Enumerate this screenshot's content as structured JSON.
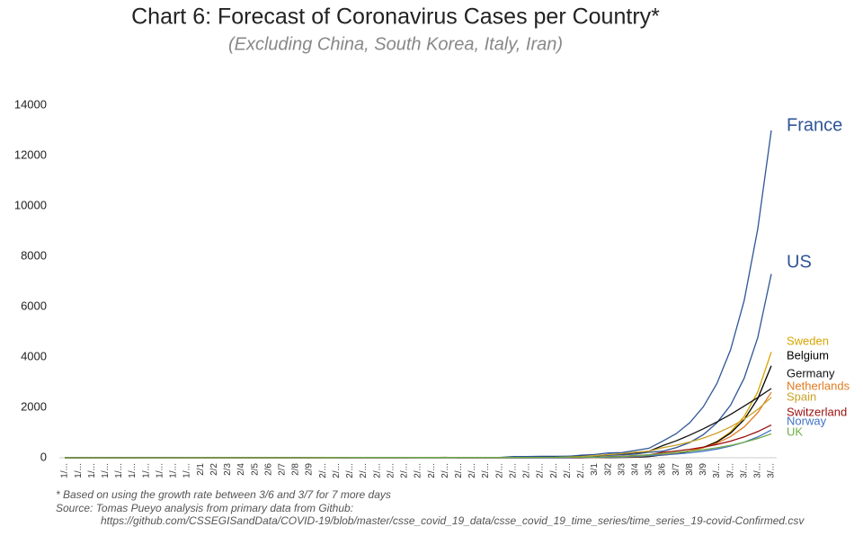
{
  "chart_data": {
    "type": "line",
    "title": "Chart 6: Forecast of Coronavirus Cases per Country*",
    "subtitle": "(Excluding China, South Korea, Italy, Iran)",
    "notes": [
      "* Based on using the growth rate between 3/6 and 3/7 for 7 more days",
      "Source: Tomas Pueyo analysis from primary data from Github:",
      "https://github.com/CSSEGISandData/COVID-19/blob/master/csse_covid_19_data/csse_covid_19_time_series/time_series_19-covid-Confirmed.csv"
    ],
    "categories": [
      "1/...",
      "1/...",
      "1/...",
      "1/...",
      "1/...",
      "1/...",
      "1/...",
      "1/...",
      "1/...",
      "1/...",
      "2/1",
      "2/2",
      "2/3",
      "2/4",
      "2/5",
      "2/6",
      "2/7",
      "2/8",
      "2/9",
      "2/...",
      "2/...",
      "2/...",
      "2/...",
      "2/...",
      "2/...",
      "2/...",
      "2/...",
      "2/...",
      "2/...",
      "2/...",
      "2/...",
      "2/...",
      "2/...",
      "2/...",
      "2/...",
      "2/...",
      "2/...",
      "2/...",
      "2/...",
      "3/1",
      "3/2",
      "3/3",
      "3/4",
      "3/5",
      "3/6",
      "3/7",
      "3/8",
      "3/9",
      "3/...",
      "3/...",
      "3/...",
      "3/...",
      "3/..."
    ],
    "ylim": [
      0,
      14000
    ],
    "yticks": [
      0,
      2000,
      4000,
      6000,
      8000,
      10000,
      12000,
      14000
    ],
    "grid": false,
    "series": [
      {
        "name": "France",
        "color": "#2f5597",
        "values": [
          0,
          0,
          2,
          3,
          3,
          3,
          4,
          5,
          5,
          5,
          6,
          6,
          6,
          6,
          6,
          6,
          6,
          11,
          11,
          11,
          11,
          11,
          11,
          11,
          12,
          12,
          12,
          12,
          12,
          12,
          12,
          12,
          12,
          12,
          14,
          18,
          38,
          57,
          100,
          130,
          191,
          204,
          288,
          380,
          656,
          957,
          1392,
          2026,
          2948,
          4289,
          6241,
          9080,
          13000
        ]
      },
      {
        "name": "US",
        "color": "#2f5597",
        "values": [
          1,
          1,
          2,
          2,
          5,
          5,
          5,
          5,
          5,
          6,
          8,
          8,
          11,
          11,
          11,
          11,
          11,
          11,
          11,
          11,
          12,
          13,
          13,
          13,
          13,
          13,
          13,
          13,
          13,
          13,
          15,
          15,
          15,
          51,
          51,
          57,
          58,
          60,
          68,
          74,
          98,
          118,
          149,
          217,
          262,
          402,
          607,
          917,
          1385,
          2091,
          3158,
          4768,
          7300
        ]
      },
      {
        "name": "Sweden",
        "color": "#d9a400",
        "values": [
          0,
          0,
          0,
          0,
          0,
          0,
          0,
          0,
          0,
          0,
          1,
          1,
          1,
          1,
          1,
          1,
          1,
          1,
          1,
          1,
          1,
          1,
          1,
          1,
          1,
          1,
          1,
          1,
          1,
          1,
          1,
          1,
          1,
          1,
          1,
          2,
          7,
          7,
          12,
          14,
          15,
          21,
          35,
          94,
          101,
          161,
          256,
          408,
          648,
          1031,
          1640,
          2608,
          4200
        ]
      },
      {
        "name": "Belgium",
        "color": "#000000",
        "values": [
          0,
          0,
          0,
          0,
          0,
          0,
          0,
          0,
          0,
          0,
          0,
          0,
          0,
          1,
          1,
          1,
          1,
          1,
          1,
          1,
          1,
          1,
          1,
          1,
          1,
          1,
          1,
          1,
          1,
          1,
          1,
          1,
          1,
          1,
          1,
          1,
          1,
          1,
          1,
          2,
          8,
          13,
          23,
          50,
          109,
          169,
          262,
          406,
          630,
          977,
          1514,
          2348,
          3650
        ]
      },
      {
        "name": "Germany",
        "color": "#111111",
        "values": [
          0,
          0,
          0,
          0,
          0,
          0,
          4,
          4,
          4,
          5,
          8,
          10,
          12,
          12,
          12,
          12,
          13,
          13,
          14,
          14,
          16,
          16,
          16,
          16,
          16,
          16,
          16,
          16,
          16,
          16,
          16,
          16,
          16,
          16,
          16,
          18,
          21,
          26,
          57,
          57,
          129,
          157,
          196,
          262,
          482,
          670,
          900,
          1150,
          1420,
          1720,
          2050,
          2390,
          2750
        ]
      },
      {
        "name": "Netherlands",
        "color": "#e07b20",
        "values": [
          0,
          0,
          0,
          0,
          0,
          0,
          0,
          0,
          0,
          0,
          0,
          0,
          0,
          0,
          0,
          0,
          0,
          0,
          0,
          0,
          0,
          0,
          0,
          0,
          0,
          0,
          0,
          0,
          0,
          0,
          0,
          0,
          0,
          0,
          0,
          0,
          1,
          1,
          6,
          10,
          18,
          24,
          38,
          82,
          128,
          188,
          274,
          398,
          579,
          843,
          1226,
          1784,
          2600
        ]
      },
      {
        "name": "Spain",
        "color": "#c9a227",
        "values": [
          0,
          0,
          0,
          0,
          0,
          0,
          0,
          0,
          0,
          0,
          1,
          1,
          1,
          1,
          1,
          1,
          1,
          1,
          2,
          2,
          2,
          2,
          2,
          2,
          2,
          2,
          2,
          2,
          2,
          2,
          2,
          2,
          2,
          2,
          6,
          13,
          15,
          32,
          45,
          84,
          120,
          165,
          222,
          259,
          400,
          500,
          626,
          783,
          979,
          1225,
          1533,
          1918,
          2400
        ]
      },
      {
        "name": "Switzerland",
        "color": "#9b0d0d",
        "values": [
          0,
          0,
          0,
          0,
          0,
          0,
          0,
          0,
          0,
          0,
          0,
          0,
          0,
          0,
          0,
          0,
          0,
          0,
          0,
          0,
          0,
          0,
          0,
          0,
          1,
          1,
          8,
          8,
          18,
          0,
          0,
          0,
          0,
          0,
          0,
          0,
          0,
          0,
          0,
          27,
          42,
          56,
          90,
          114,
          214,
          268,
          336,
          421,
          527,
          661,
          828,
          1038,
          1300
        ]
      },
      {
        "name": "Norway",
        "color": "#4472c4",
        "values": [
          0,
          0,
          0,
          0,
          0,
          0,
          0,
          0,
          0,
          0,
          0,
          0,
          0,
          0,
          0,
          0,
          0,
          0,
          0,
          0,
          0,
          0,
          0,
          0,
          0,
          0,
          0,
          0,
          0,
          0,
          0,
          0,
          0,
          0,
          0,
          1,
          1,
          6,
          15,
          19,
          25,
          32,
          56,
          87,
          108,
          147,
          196,
          261,
          348,
          464,
          619,
          825,
          1100
        ]
      },
      {
        "name": "UK",
        "color": "#70ad47",
        "values": [
          0,
          0,
          0,
          0,
          0,
          0,
          0,
          0,
          0,
          2,
          2,
          2,
          2,
          2,
          2,
          3,
          3,
          3,
          3,
          8,
          8,
          9,
          9,
          9,
          9,
          9,
          9,
          9,
          9,
          9,
          9,
          9,
          9,
          9,
          13,
          13,
          15,
          20,
          23,
          36,
          40,
          51,
          86,
          116,
          164,
          207,
          257,
          320,
          398,
          494,
          614,
          764,
          950
        ]
      }
    ]
  }
}
